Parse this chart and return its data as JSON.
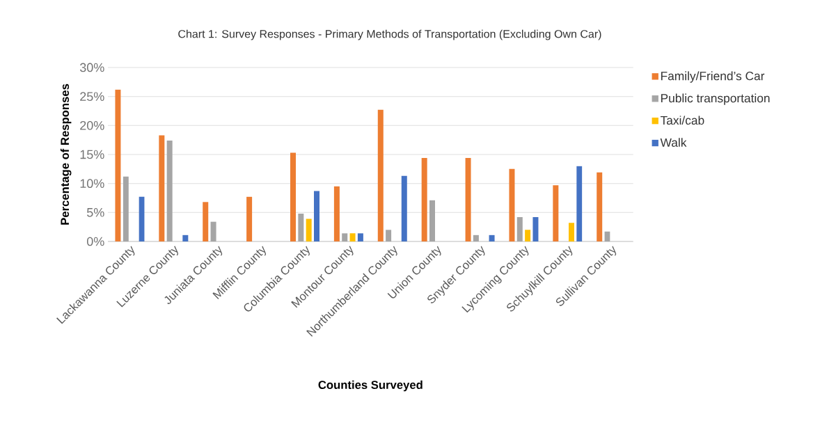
{
  "chart_data": {
    "type": "bar",
    "title": "Chart 1: Survey Responses - Primary Methods of Transportation (Excluding Own Car)",
    "xlabel": "Counties Surveyed",
    "ylabel": "Percentage of Responses",
    "categories": [
      "Lackawanna County",
      "Luzerne County",
      "Juniata County",
      "Mifflin County",
      "Columbia County",
      "Montour County",
      "Northumberland County",
      "Union County",
      "Snyder County",
      "Lycoming County",
      "Schuylkill County",
      "Sullivan County"
    ],
    "series": [
      {
        "name": "Family/Friend’s Car",
        "color": "#ed7d31",
        "values": [
          26.2,
          18.3,
          6.8,
          7.7,
          15.3,
          9.5,
          22.7,
          14.4,
          14.4,
          12.5,
          9.7,
          11.9
        ]
      },
      {
        "name": "Public transportation",
        "color": "#a5a5a5",
        "values": [
          11.2,
          17.4,
          3.4,
          null,
          4.8,
          1.4,
          2.0,
          7.1,
          1.1,
          4.2,
          null,
          1.7
        ]
      },
      {
        "name": "Taxi/cab",
        "color": "#ffc000",
        "values": [
          null,
          null,
          null,
          null,
          3.9,
          1.4,
          null,
          null,
          null,
          2.0,
          3.2,
          null
        ]
      },
      {
        "name": "Walk",
        "color": "#4472c4",
        "values": [
          7.7,
          1.1,
          null,
          null,
          8.7,
          1.4,
          11.3,
          null,
          1.1,
          4.2,
          13.0,
          null
        ]
      }
    ],
    "ylim": [
      0,
      30
    ],
    "yticks": [
      {
        "value": 0,
        "label": "0%"
      },
      {
        "value": 5,
        "label": "5%"
      },
      {
        "value": 10,
        "label": "10%"
      },
      {
        "value": 15,
        "label": "15%"
      },
      {
        "value": 20,
        "label": "20%"
      },
      {
        "value": 25,
        "label": "25%"
      },
      {
        "value": 30,
        "label": "30%"
      }
    ],
    "grid": "y",
    "legend": "right"
  }
}
